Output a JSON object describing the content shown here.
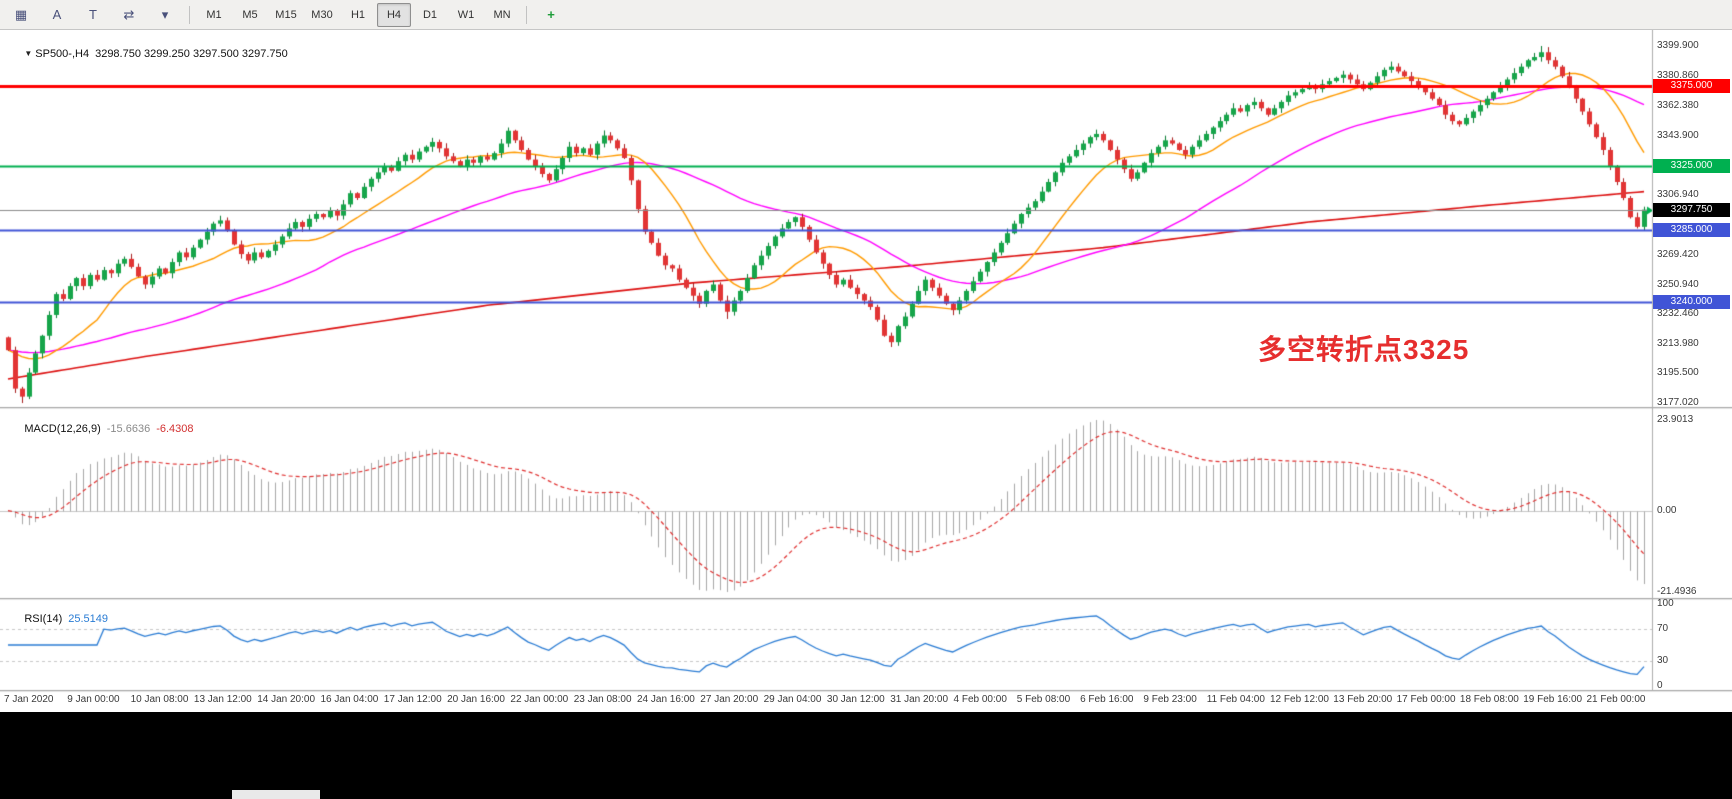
{
  "toolbar": {
    "left_icons": [
      {
        "name": "chart-window-icon",
        "glyph": "▦"
      },
      {
        "name": "cursor-tool-icon",
        "glyph": "A"
      },
      {
        "name": "text-tool-icon",
        "glyph": "T"
      },
      {
        "name": "shift-tool-icon",
        "glyph": "⇄"
      },
      {
        "name": "chevron-down-icon",
        "glyph": "▾"
      }
    ],
    "timeframes": [
      "M1",
      "M5",
      "M15",
      "M30",
      "H1",
      "H4",
      "D1",
      "W1",
      "MN"
    ],
    "active_timeframe": "H4",
    "right_icons": [
      {
        "name": "add-indicator-icon",
        "glyph": "+"
      }
    ]
  },
  "main_chart": {
    "symbol_label": "SP500-,H4",
    "ohlc": "3298.750 3299.250 3297.500 3297.750",
    "current_price": "3297.750",
    "annotation": {
      "text": "多空转折点3325",
      "color": "#e62e2e"
    },
    "y_ticks": [
      "3399.900",
      "3380.860",
      "3362.380",
      "3343.900",
      "3306.940",
      "3269.420",
      "3250.940",
      "3232.460",
      "3213.980",
      "3195.500",
      "3177.020"
    ],
    "hlines": [
      {
        "price": 3375.0,
        "label": "3375.000",
        "color": "#ff0000",
        "width": 3
      },
      {
        "price": 3325.0,
        "label": "3325.000",
        "color": "#00b050",
        "width": 2
      },
      {
        "price": 3285.0,
        "label": "3285.000",
        "color": "#4054d6",
        "width": 2
      },
      {
        "price": 3240.0,
        "label": "3240.000",
        "color": "#4054d6",
        "width": 2
      }
    ]
  },
  "macd": {
    "label": "MACD(12,26,9)",
    "value1": "-15.6636",
    "value2": "-6.4308",
    "y_ticks": [
      "23.9013",
      "0.00",
      "-21.4936"
    ]
  },
  "rsi": {
    "label": "RSI(14)",
    "value": "25.5149",
    "levels": [
      "100",
      "70",
      "30",
      "0"
    ]
  },
  "time_axis": [
    "7 Jan 2020",
    "9 Jan 00:00",
    "10 Jan 08:00",
    "13 Jan 12:00",
    "14 Jan 20:00",
    "16 Jan 04:00",
    "17 Jan 12:00",
    "20 Jan 16:00",
    "22 Jan 00:00",
    "23 Jan 08:00",
    "24 Jan 16:00",
    "27 Jan 20:00",
    "29 Jan 04:00",
    "30 Jan 12:00",
    "31 Jan 20:00",
    "4 Feb 00:00",
    "5 Feb 08:00",
    "6 Feb 16:00",
    "9 Feb 23:00",
    "11 Feb 04:00",
    "12 Feb 12:00",
    "13 Feb 20:00",
    "17 Feb 00:00",
    "18 Feb 08:00",
    "19 Feb 16:00",
    "21 Feb 00:00"
  ],
  "chart_data": {
    "type": "candlestick",
    "symbol": "SP500-",
    "timeframe": "H4",
    "price_axis": {
      "min": 3177.02,
      "max": 3399.9
    },
    "last_price": 3297.75,
    "first_open": 3218,
    "closes": [
      3210,
      3186,
      3181,
      3196,
      3208,
      3219,
      3232,
      3245,
      3242,
      3250,
      3255,
      3250,
      3257,
      3254,
      3260,
      3258,
      3264,
      3267,
      3262,
      3256,
      3251,
      3256,
      3261,
      3258,
      3265,
      3271,
      3268,
      3274,
      3279,
      3284,
      3289,
      3291,
      3285,
      3276,
      3270,
      3266,
      3271,
      3268,
      3272,
      3276,
      3281,
      3286,
      3290,
      3287,
      3292,
      3295,
      3293,
      3297,
      3294,
      3301,
      3308,
      3305,
      3312,
      3317,
      3321,
      3325,
      3322,
      3328,
      3332,
      3329,
      3334,
      3337,
      3340,
      3336,
      3331,
      3328,
      3325,
      3329,
      3327,
      3331,
      3329,
      3333,
      3339,
      3347,
      3341,
      3335,
      3329,
      3325,
      3320,
      3316,
      3323,
      3330,
      3337,
      3333,
      3336,
      3332,
      3339,
      3344,
      3341,
      3336,
      3330,
      3316,
      3298,
      3284,
      3277,
      3269,
      3263,
      3261,
      3254,
      3249,
      3244,
      3239,
      3247,
      3251,
      3241,
      3234,
      3241,
      3247,
      3255,
      3263,
      3269,
      3275,
      3281,
      3286,
      3290,
      3293,
      3287,
      3279,
      3271,
      3264,
      3257,
      3251,
      3254,
      3249,
      3245,
      3241,
      3237,
      3229,
      3219,
      3215,
      3225,
      3231,
      3239,
      3247,
      3254,
      3249,
      3244,
      3239,
      3235,
      3241,
      3247,
      3253,
      3259,
      3265,
      3271,
      3277,
      3283,
      3289,
      3295,
      3299,
      3303,
      3309,
      3315,
      3321,
      3327,
      3331,
      3335,
      3339,
      3343,
      3345,
      3341,
      3335,
      3329,
      3323,
      3317,
      3321,
      3327,
      3333,
      3337,
      3341,
      3339,
      3335,
      3332,
      3337,
      3341,
      3345,
      3349,
      3353,
      3357,
      3361,
      3359,
      3363,
      3365,
      3361,
      3357,
      3361,
      3365,
      3369,
      3371,
      3373,
      3375,
      3373,
      3376,
      3378,
      3380,
      3382,
      3379,
      3376,
      3373,
      3377,
      3381,
      3385,
      3387,
      3384,
      3381,
      3378,
      3375,
      3371,
      3367,
      3363,
      3357,
      3353,
      3351,
      3355,
      3359,
      3363,
      3367,
      3371,
      3375,
      3379,
      3383,
      3387,
      3391,
      3393,
      3396,
      3391,
      3387,
      3381,
      3374,
      3367,
      3359,
      3351,
      3343,
      3335,
      3325,
      3315,
      3305,
      3293,
      3287,
      3297.75
    ],
    "wick_overrides": [
      {
        "i": 2,
        "low": 3177.0
      },
      {
        "i": 73,
        "high": 3349.0
      },
      {
        "i": 105,
        "low": 3229.5
      },
      {
        "i": 129,
        "low": 3212.0
      },
      {
        "i": 224,
        "high": 3399.9
      },
      {
        "i": 238,
        "low": 3286.0
      },
      {
        "i": 239,
        "low": 3285.0
      }
    ],
    "ma_fast_period": 13,
    "ma_mid_period": 45,
    "ma_slow_anchors": [
      [
        0,
        3192
      ],
      [
        20,
        3206
      ],
      [
        45,
        3222
      ],
      [
        70,
        3238
      ],
      [
        100,
        3252
      ],
      [
        130,
        3262
      ],
      [
        160,
        3274
      ],
      [
        190,
        3290
      ],
      [
        215,
        3300
      ],
      [
        239,
        3309
      ]
    ],
    "macd_params": [
      12,
      26,
      9
    ],
    "macd_axis": {
      "max": 23.9013,
      "min": -21.4936
    },
    "rsi_period": 14,
    "rsi_axis": {
      "max": 100,
      "min": 0,
      "levels": [
        70,
        30
      ]
    },
    "colors": {
      "up": "#16a54a",
      "up_border": "#0b7e35",
      "down": "#e23434",
      "down_border": "#a81f1f",
      "ma_fast": "#ff9b00",
      "ma_mid": "#ff00ff",
      "ma_slow": "#dd1111",
      "macd_hist": "#a8a8a8",
      "macd_signal": "#e03030",
      "rsi": "#2a7cd4",
      "current_price_line": "#8a8a8a",
      "grid": "#c8c8c8"
    }
  }
}
